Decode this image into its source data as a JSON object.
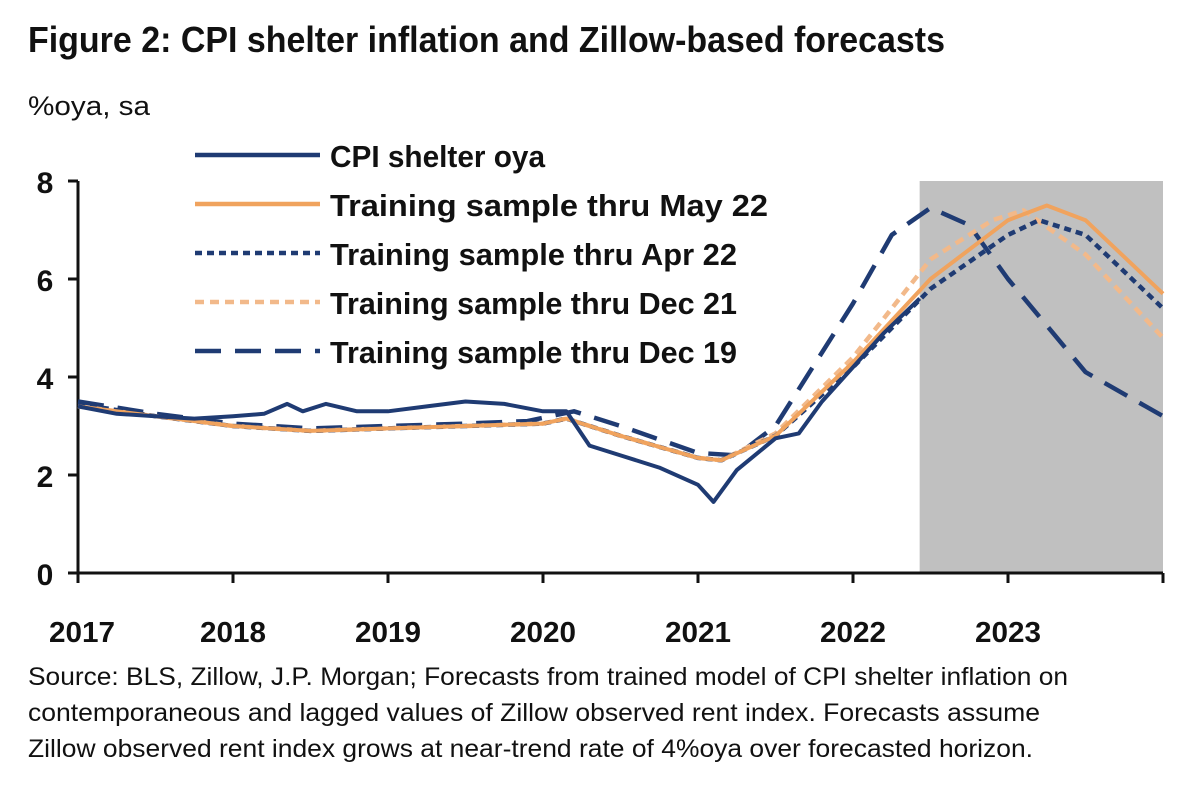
{
  "chart_data": {
    "type": "line",
    "title": "Figure 2: CPI shelter inflation and Zillow-based forecasts",
    "ylabel": "%oya, sa",
    "xlabel": "",
    "xlim": [
      2017,
      2024
    ],
    "ylim": [
      0,
      8
    ],
    "x_tick_labels": [
      "2017",
      "2018",
      "2019",
      "2020",
      "2021",
      "2022",
      "2023"
    ],
    "y_tick_labels": [
      "0",
      "2",
      "4",
      "6",
      "8"
    ],
    "grid": false,
    "legend_position": "top-left",
    "shaded_region": {
      "x": [
        2022.43,
        2024
      ],
      "color": "#c0c0c0"
    },
    "series": [
      {
        "name": "CPI shelter oya",
        "color": "#1f3b73",
        "style": "solid",
        "points": [
          [
            2017.0,
            3.4
          ],
          [
            2017.25,
            3.25
          ],
          [
            2017.5,
            3.2
          ],
          [
            2017.75,
            3.15
          ],
          [
            2018.0,
            3.2
          ],
          [
            2018.2,
            3.25
          ],
          [
            2018.35,
            3.45
          ],
          [
            2018.45,
            3.3
          ],
          [
            2018.6,
            3.45
          ],
          [
            2018.8,
            3.3
          ],
          [
            2019.0,
            3.3
          ],
          [
            2019.25,
            3.4
          ],
          [
            2019.5,
            3.5
          ],
          [
            2019.75,
            3.45
          ],
          [
            2020.0,
            3.3
          ],
          [
            2020.15,
            3.3
          ],
          [
            2020.3,
            2.6
          ],
          [
            2020.5,
            2.4
          ],
          [
            2020.75,
            2.15
          ],
          [
            2021.0,
            1.8
          ],
          [
            2021.1,
            1.45
          ],
          [
            2021.25,
            2.1
          ],
          [
            2021.5,
            2.75
          ],
          [
            2021.65,
            2.85
          ],
          [
            2021.8,
            3.5
          ],
          [
            2022.0,
            4.2
          ],
          [
            2022.2,
            4.9
          ],
          [
            2022.43,
            5.6
          ]
        ]
      },
      {
        "name": "Training sample thru May 22",
        "color": "#f0a35e",
        "style": "solid",
        "points": [
          [
            2017.0,
            3.4
          ],
          [
            2017.5,
            3.2
          ],
          [
            2018.0,
            3.0
          ],
          [
            2018.5,
            2.9
          ],
          [
            2019.0,
            2.95
          ],
          [
            2019.5,
            3.0
          ],
          [
            2020.0,
            3.05
          ],
          [
            2020.15,
            3.15
          ],
          [
            2020.5,
            2.8
          ],
          [
            2021.0,
            2.35
          ],
          [
            2021.15,
            2.3
          ],
          [
            2021.5,
            2.8
          ],
          [
            2022.0,
            4.3
          ],
          [
            2022.5,
            6.0
          ],
          [
            2023.0,
            7.2
          ],
          [
            2023.25,
            7.5
          ],
          [
            2023.5,
            7.2
          ],
          [
            2024.0,
            5.7
          ]
        ]
      },
      {
        "name": "Training sample thru Apr 22",
        "color": "#1f3b73",
        "style": "dotted",
        "points": [
          [
            2017.0,
            3.45
          ],
          [
            2017.5,
            3.2
          ],
          [
            2018.0,
            3.0
          ],
          [
            2018.5,
            2.9
          ],
          [
            2019.0,
            2.95
          ],
          [
            2019.5,
            3.0
          ],
          [
            2020.0,
            3.05
          ],
          [
            2020.15,
            3.15
          ],
          [
            2020.5,
            2.8
          ],
          [
            2021.0,
            2.35
          ],
          [
            2021.15,
            2.3
          ],
          [
            2021.5,
            2.8
          ],
          [
            2022.0,
            4.2
          ],
          [
            2022.5,
            5.8
          ],
          [
            2023.0,
            6.9
          ],
          [
            2023.2,
            7.2
          ],
          [
            2023.5,
            6.9
          ],
          [
            2024.0,
            5.4
          ]
        ]
      },
      {
        "name": "Training sample thru Dec 21",
        "color": "#f2b98a",
        "style": "dashed",
        "points": [
          [
            2017.0,
            3.4
          ],
          [
            2017.5,
            3.2
          ],
          [
            2018.0,
            3.0
          ],
          [
            2018.5,
            2.9
          ],
          [
            2019.0,
            2.95
          ],
          [
            2019.5,
            3.0
          ],
          [
            2020.0,
            3.05
          ],
          [
            2020.15,
            3.15
          ],
          [
            2020.5,
            2.8
          ],
          [
            2021.0,
            2.35
          ],
          [
            2021.15,
            2.3
          ],
          [
            2021.5,
            2.85
          ],
          [
            2022.0,
            4.4
          ],
          [
            2022.5,
            6.4
          ],
          [
            2022.9,
            7.2
          ],
          [
            2023.1,
            7.4
          ],
          [
            2023.5,
            6.5
          ],
          [
            2024.0,
            4.8
          ]
        ]
      },
      {
        "name": "Training sample thru Dec 19",
        "color": "#1f3b73",
        "style": "longdash",
        "points": [
          [
            2017.0,
            3.5
          ],
          [
            2017.5,
            3.25
          ],
          [
            2018.0,
            3.05
          ],
          [
            2018.5,
            2.95
          ],
          [
            2019.0,
            3.0
          ],
          [
            2019.5,
            3.05
          ],
          [
            2019.9,
            3.1
          ],
          [
            2020.2,
            3.3
          ],
          [
            2020.5,
            3.0
          ],
          [
            2021.0,
            2.45
          ],
          [
            2021.25,
            2.4
          ],
          [
            2021.5,
            3.0
          ],
          [
            2022.0,
            5.5
          ],
          [
            2022.25,
            6.9
          ],
          [
            2022.5,
            7.45
          ],
          [
            2022.75,
            7.1
          ],
          [
            2023.0,
            6.0
          ],
          [
            2023.5,
            4.1
          ],
          [
            2024.0,
            3.2
          ]
        ]
      }
    ]
  },
  "source_note": [
    "Source: BLS, Zillow, J.P. Morgan; Forecasts from trained model of CPI shelter inflation on",
    "contemporaneous and lagged values of Zillow observed rent index. Forecasts assume",
    "Zillow observed rent index grows at near-trend rate of 4%oya over forecasted horizon."
  ]
}
